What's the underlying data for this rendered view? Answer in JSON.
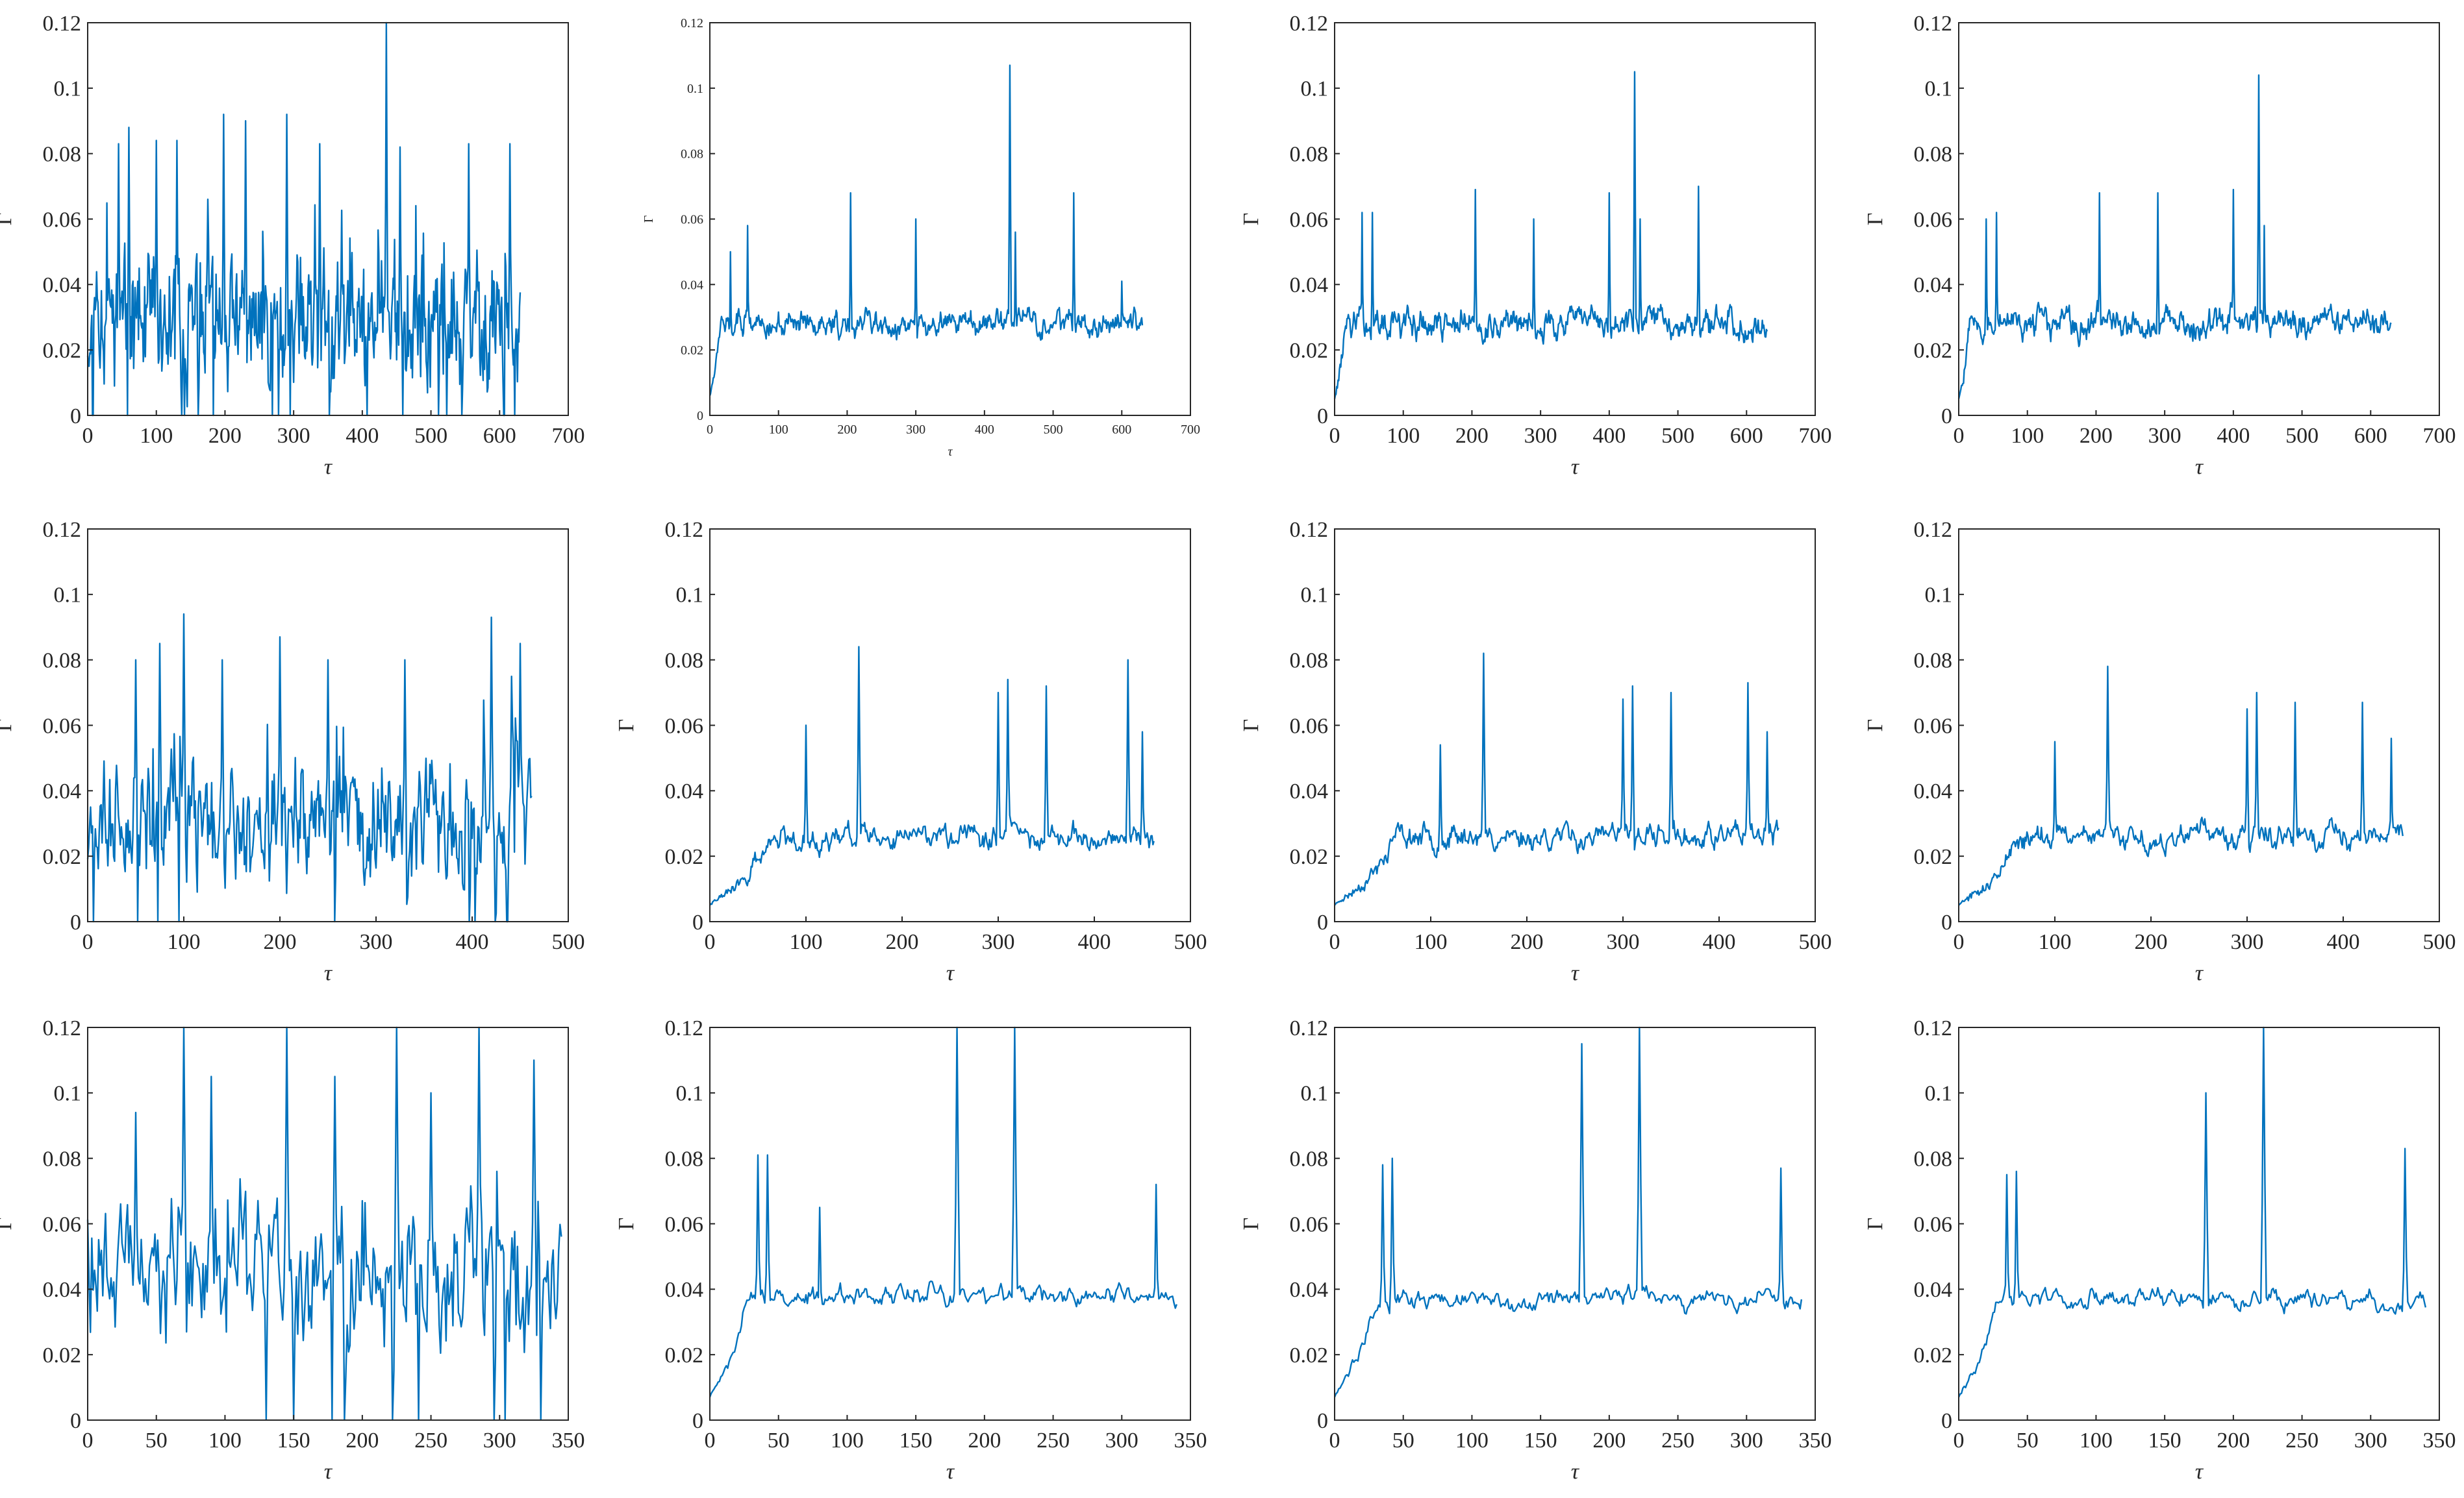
{
  "chart_data": [
    {
      "type": "line",
      "panel": "row1-col1",
      "xlabel": "τ",
      "ylabel": "Γ",
      "xlim": [
        0,
        700
      ],
      "ylim": [
        0,
        0.12
      ],
      "xticks": [
        "0",
        "100",
        "200",
        "300",
        "400",
        "500",
        "600",
        "700"
      ],
      "yticks": [
        "0",
        "0.02",
        "0.04",
        "0.06",
        "0.08",
        "0.1",
        "0.12"
      ],
      "series": [
        {
          "name": "Γ",
          "color": "#0072BD",
          "n": 630,
          "base": 0.028,
          "amp": 0.022,
          "noise": 0.6,
          "warmup": 0,
          "start": 0.0,
          "seed": 11,
          "peaks": [
            [
              45,
              0.083
            ],
            [
              60,
              0.088
            ],
            [
              100,
              0.084
            ],
            [
              130,
              0.084
            ],
            [
              198,
              0.092
            ],
            [
              230,
              0.09
            ],
            [
              290,
              0.092
            ],
            [
              338,
              0.083
            ],
            [
              435,
              0.12
            ],
            [
              455,
              0.082
            ],
            [
              555,
              0.083
            ],
            [
              615,
              0.083
            ]
          ]
        }
      ]
    },
    {
      "type": "line",
      "panel": "row1-col2",
      "xlabel": "τ",
      "ylabel": "Γ",
      "xlim": [
        0,
        700
      ],
      "ylim": [
        0,
        0.12
      ],
      "xticks": [
        "0",
        "100",
        "200",
        "300",
        "400",
        "500",
        "600",
        "700"
      ],
      "yticks": [
        "0",
        "0.02",
        "0.04",
        "0.06",
        "0.08",
        "0.1",
        "0.12"
      ],
      "series": [
        {
          "name": "Γ",
          "color": "#0072BD",
          "n": 630,
          "base": 0.028,
          "amp": 0.006,
          "noise": 0.3,
          "warmup": 12,
          "start": 0.006,
          "seed": 12,
          "peaks": [
            [
              30,
              0.05
            ],
            [
              55,
              0.058
            ],
            [
              205,
              0.068
            ],
            [
              300,
              0.06
            ],
            [
              437,
              0.107
            ],
            [
              445,
              0.056
            ],
            [
              530,
              0.068
            ],
            [
              600,
              0.041
            ]
          ]
        }
      ]
    },
    {
      "type": "line",
      "panel": "row1-col3",
      "xlabel": "τ",
      "ylabel": "Γ",
      "xlim": [
        0,
        700
      ],
      "ylim": [
        0,
        0.12
      ],
      "xticks": [
        "0",
        "100",
        "200",
        "300",
        "400",
        "500",
        "600",
        "700"
      ],
      "yticks": [
        "0",
        "0.02",
        "0.04",
        "0.06",
        "0.08",
        "0.1",
        "0.12"
      ],
      "series": [
        {
          "name": "Γ",
          "color": "#0072BD",
          "n": 630,
          "base": 0.028,
          "amp": 0.007,
          "noise": 0.3,
          "warmup": 12,
          "start": 0.005,
          "seed": 13,
          "peaks": [
            [
              40,
              0.062
            ],
            [
              55,
              0.062
            ],
            [
              205,
              0.069
            ],
            [
              290,
              0.06
            ],
            [
              400,
              0.068
            ],
            [
              437,
              0.105
            ],
            [
              445,
              0.06
            ],
            [
              530,
              0.07
            ]
          ]
        }
      ]
    },
    {
      "type": "line",
      "panel": "row1-col4",
      "xlabel": "τ",
      "ylabel": "Γ",
      "xlim": [
        0,
        700
      ],
      "ylim": [
        0,
        0.12
      ],
      "xticks": [
        "0",
        "100",
        "200",
        "300",
        "400",
        "500",
        "600",
        "700"
      ],
      "yticks": [
        "0",
        "0.02",
        "0.04",
        "0.06",
        "0.08",
        "0.1",
        "0.12"
      ],
      "series": [
        {
          "name": "Γ",
          "color": "#0072BD",
          "n": 630,
          "base": 0.028,
          "amp": 0.007,
          "noise": 0.3,
          "warmup": 12,
          "start": 0.005,
          "seed": 14,
          "peaks": [
            [
              40,
              0.06
            ],
            [
              55,
              0.062
            ],
            [
              205,
              0.068
            ],
            [
              290,
              0.068
            ],
            [
              400,
              0.069
            ],
            [
              437,
              0.104
            ],
            [
              445,
              0.058
            ]
          ]
        }
      ]
    },
    {
      "type": "line",
      "panel": "row2-col1",
      "xlabel": "τ",
      "ylabel": "Γ",
      "xlim": [
        0,
        500
      ],
      "ylim": [
        0,
        0.12
      ],
      "xticks": [
        "0",
        "100",
        "200",
        "300",
        "400",
        "500"
      ],
      "yticks": [
        "0",
        "0.02",
        "0.04",
        "0.06",
        "0.08",
        "0.1",
        "0.12"
      ],
      "series": [
        {
          "name": "Γ",
          "color": "#0072BD",
          "n": 462,
          "base": 0.03,
          "amp": 0.022,
          "noise": 0.6,
          "warmup": 0,
          "start": 0.0,
          "seed": 21,
          "peaks": [
            [
              50,
              0.08
            ],
            [
              75,
              0.085
            ],
            [
              100,
              0.094
            ],
            [
              140,
              0.08
            ],
            [
              200,
              0.087
            ],
            [
              250,
              0.08
            ],
            [
              330,
              0.08
            ],
            [
              420,
              0.093
            ],
            [
              450,
              0.085
            ]
          ]
        }
      ]
    },
    {
      "type": "line",
      "panel": "row2-col2",
      "xlabel": "τ",
      "ylabel": "Γ",
      "xlim": [
        0,
        500
      ],
      "ylim": [
        0,
        0.12
      ],
      "xticks": [
        "0",
        "100",
        "200",
        "300",
        "400",
        "500"
      ],
      "yticks": [
        "0",
        "0.02",
        "0.04",
        "0.06",
        "0.08",
        "0.1",
        "0.12"
      ],
      "series": [
        {
          "name": "Γ",
          "color": "#0072BD",
          "n": 462,
          "base": 0.026,
          "amp": 0.006,
          "noise": 0.3,
          "warmup": 60,
          "start": 0.005,
          "seed": 22,
          "peaks": [
            [
              100,
              0.06
            ],
            [
              155,
              0.084
            ],
            [
              300,
              0.07
            ],
            [
              310,
              0.074
            ],
            [
              350,
              0.072
            ],
            [
              435,
              0.08
            ],
            [
              450,
              0.058
            ]
          ]
        }
      ]
    },
    {
      "type": "line",
      "panel": "row2-col3",
      "xlabel": "τ",
      "ylabel": "Γ",
      "xlim": [
        0,
        500
      ],
      "ylim": [
        0,
        0.12
      ],
      "xticks": [
        "0",
        "100",
        "200",
        "300",
        "400",
        "500"
      ],
      "yticks": [
        "0",
        "0.02",
        "0.04",
        "0.06",
        "0.08",
        "0.1",
        "0.12"
      ],
      "series": [
        {
          "name": "Γ",
          "color": "#0072BD",
          "n": 462,
          "base": 0.026,
          "amp": 0.006,
          "noise": 0.3,
          "warmup": 60,
          "start": 0.005,
          "seed": 23,
          "peaks": [
            [
              110,
              0.054
            ],
            [
              155,
              0.082
            ],
            [
              300,
              0.068
            ],
            [
              310,
              0.072
            ],
            [
              350,
              0.07
            ],
            [
              430,
              0.073
            ],
            [
              450,
              0.058
            ]
          ]
        }
      ]
    },
    {
      "type": "line",
      "panel": "row2-col4",
      "xlabel": "τ",
      "ylabel": "Γ",
      "xlim": [
        0,
        500
      ],
      "ylim": [
        0,
        0.12
      ],
      "xticks": [
        "0",
        "100",
        "200",
        "300",
        "400",
        "500"
      ],
      "yticks": [
        "0",
        "0.02",
        "0.04",
        "0.06",
        "0.08",
        "0.1",
        "0.12"
      ],
      "series": [
        {
          "name": "Γ",
          "color": "#0072BD",
          "n": 462,
          "base": 0.026,
          "amp": 0.006,
          "noise": 0.3,
          "warmup": 60,
          "start": 0.005,
          "seed": 24,
          "peaks": [
            [
              100,
              0.055
            ],
            [
              155,
              0.078
            ],
            [
              300,
              0.065
            ],
            [
              310,
              0.07
            ],
            [
              350,
              0.067
            ],
            [
              420,
              0.067
            ],
            [
              450,
              0.056
            ]
          ]
        }
      ]
    },
    {
      "type": "line",
      "panel": "row3-col1",
      "xlabel": "τ",
      "ylabel": "Γ",
      "xlim": [
        0,
        350
      ],
      "ylim": [
        0,
        0.12
      ],
      "xticks": [
        "0",
        "50",
        "100",
        "150",
        "200",
        "250",
        "300",
        "350"
      ],
      "yticks": [
        "0",
        "0.02",
        "0.04",
        "0.06",
        "0.08",
        "0.1",
        "0.12"
      ],
      "series": [
        {
          "name": "Γ",
          "color": "#0072BD",
          "n": 345,
          "base": 0.045,
          "amp": 0.025,
          "noise": 0.6,
          "warmup": 0,
          "start": 0.0,
          "seed": 31,
          "peaks": [
            [
              35,
              0.094
            ],
            [
              70,
              0.12
            ],
            [
              90,
              0.105
            ],
            [
              145,
              0.12
            ],
            [
              180,
              0.105
            ],
            [
              225,
              0.12
            ],
            [
              250,
              0.1
            ],
            [
              285,
              0.12
            ],
            [
              325,
              0.11
            ]
          ]
        }
      ]
    },
    {
      "type": "line",
      "panel": "row3-col2",
      "xlabel": "τ",
      "ylabel": "Γ",
      "xlim": [
        0,
        350
      ],
      "ylim": [
        0,
        0.12
      ],
      "xticks": [
        "0",
        "50",
        "100",
        "150",
        "200",
        "250",
        "300",
        "350"
      ],
      "yticks": [
        "0",
        "0.02",
        "0.04",
        "0.06",
        "0.08",
        "0.1",
        "0.12"
      ],
      "series": [
        {
          "name": "Γ",
          "color": "#0072BD",
          "n": 340,
          "base": 0.038,
          "amp": 0.005,
          "noise": 0.3,
          "warmup": 25,
          "start": 0.007,
          "seed": 32,
          "peaks": [
            [
              35,
              0.081
            ],
            [
              42,
              0.081
            ],
            [
              80,
              0.065
            ],
            [
              180,
              0.12
            ],
            [
              222,
              0.12
            ],
            [
              325,
              0.072
            ]
          ]
        }
      ]
    },
    {
      "type": "line",
      "panel": "row3-col3",
      "xlabel": "τ",
      "ylabel": "Γ",
      "xlim": [
        0,
        350
      ],
      "ylim": [
        0,
        0.12
      ],
      "xticks": [
        "0",
        "50",
        "100",
        "150",
        "200",
        "250",
        "300",
        "350"
      ],
      "yticks": [
        "0",
        "0.02",
        "0.04",
        "0.06",
        "0.08",
        "0.1",
        "0.12"
      ],
      "series": [
        {
          "name": "Γ",
          "color": "#0072BD",
          "n": 340,
          "base": 0.037,
          "amp": 0.005,
          "noise": 0.3,
          "warmup": 25,
          "start": 0.007,
          "seed": 33,
          "peaks": [
            [
              35,
              0.078
            ],
            [
              42,
              0.08
            ],
            [
              180,
              0.115
            ],
            [
              222,
              0.12
            ],
            [
              325,
              0.077
            ]
          ]
        }
      ]
    },
    {
      "type": "line",
      "panel": "row3-col4",
      "xlabel": "τ",
      "ylabel": "Γ",
      "xlim": [
        0,
        350
      ],
      "ylim": [
        0,
        0.12
      ],
      "xticks": [
        "0",
        "50",
        "100",
        "150",
        "200",
        "250",
        "300",
        "350"
      ],
      "yticks": [
        "0",
        "0.02",
        "0.04",
        "0.06",
        "0.08",
        "0.1",
        "0.12"
      ],
      "series": [
        {
          "name": "Γ",
          "color": "#0072BD",
          "n": 340,
          "base": 0.037,
          "amp": 0.005,
          "noise": 0.3,
          "warmup": 25,
          "start": 0.007,
          "seed": 34,
          "peaks": [
            [
              35,
              0.075
            ],
            [
              42,
              0.076
            ],
            [
              180,
              0.1
            ],
            [
              222,
              0.12
            ],
            [
              325,
              0.083
            ]
          ]
        }
      ]
    }
  ]
}
